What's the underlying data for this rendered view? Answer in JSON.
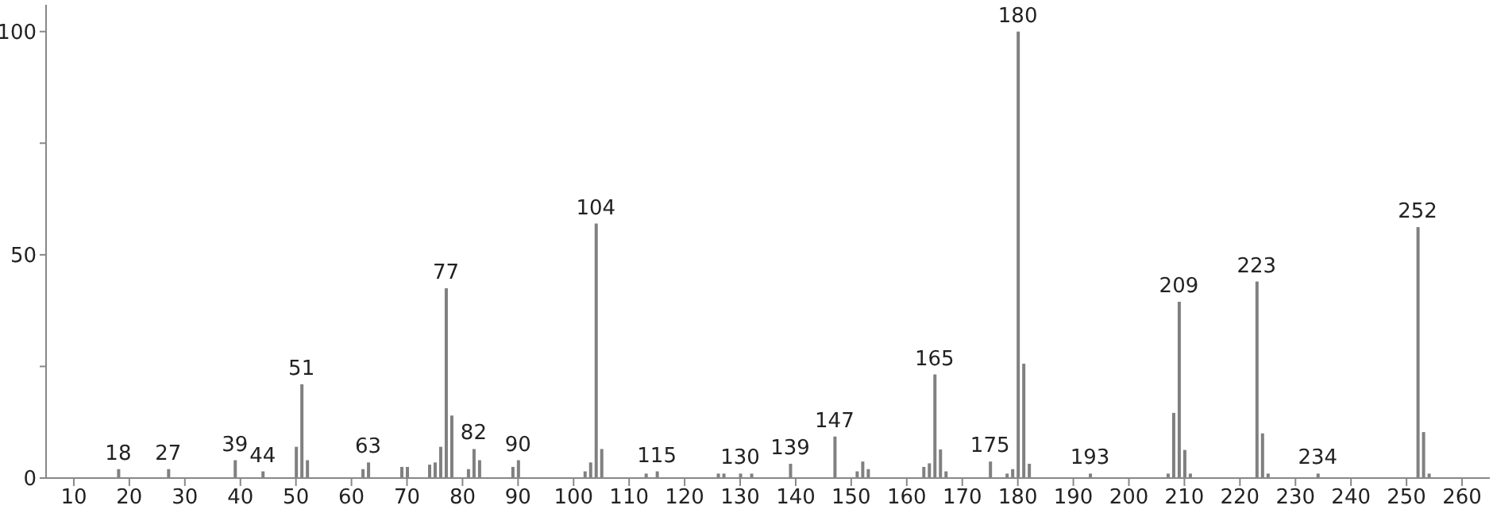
{
  "chart_data": {
    "type": "bar",
    "x": [
      18,
      27,
      39,
      44,
      50,
      51,
      52,
      62,
      63,
      69,
      70,
      74,
      75,
      76,
      77,
      78,
      81,
      82,
      83,
      89,
      90,
      102,
      103,
      104,
      105,
      113,
      115,
      126,
      127,
      130,
      132,
      139,
      147,
      151,
      152,
      153,
      163,
      164,
      165,
      166,
      167,
      175,
      178,
      179,
      180,
      181,
      182,
      193,
      207,
      208,
      209,
      210,
      211,
      223,
      224,
      225,
      234,
      252,
      253,
      254
    ],
    "values": [
      2,
      2,
      4,
      1.5,
      7,
      21,
      4,
      2,
      3.5,
      2.5,
      2.5,
      3,
      3.5,
      7,
      42.5,
      14,
      2,
      6.5,
      4,
      2.5,
      4,
      1.5,
      3.5,
      57,
      6.5,
      1,
      1.5,
      1,
      1,
      1,
      1,
      3.2,
      9.3,
      1.5,
      3.7,
      2,
      2.5,
      3.3,
      23.2,
      6.4,
      1.5,
      3.7,
      1,
      2,
      100,
      25.6,
      3.2,
      1,
      1,
      14.6,
      39.5,
      6.3,
      1,
      44,
      10,
      1,
      1,
      56.2,
      10.3,
      1
    ],
    "color": "#808080",
    "xlim": [
      5,
      265
    ],
    "xticks": [
      10,
      20,
      30,
      40,
      50,
      60,
      70,
      80,
      90,
      100,
      110,
      120,
      130,
      140,
      150,
      160,
      170,
      180,
      190,
      200,
      210,
      220,
      230,
      240,
      250,
      260
    ],
    "ylim": [
      0,
      106
    ],
    "yticks": [
      0,
      {
        "value": 25,
        "label": null
      },
      50,
      {
        "value": 75,
        "label": null
      },
      100
    ],
    "grid": false,
    "annotations": [
      {
        "text": "18",
        "x": 18,
        "y": 2
      },
      {
        "text": "27",
        "x": 27,
        "y": 2
      },
      {
        "text": "39",
        "x": 39,
        "y": 4
      },
      {
        "text": "44",
        "x": 44,
        "y": 1.5
      },
      {
        "text": "51",
        "x": 51,
        "y": 21
      },
      {
        "text": "63",
        "x": 63,
        "y": 3.5
      },
      {
        "text": "77",
        "x": 77,
        "y": 42.5
      },
      {
        "text": "82",
        "x": 82,
        "y": 6.5
      },
      {
        "text": "90",
        "x": 90,
        "y": 4
      },
      {
        "text": "104",
        "x": 104,
        "y": 57
      },
      {
        "text": "115",
        "x": 115,
        "y": 1.5
      },
      {
        "text": "130",
        "x": 130,
        "y": 1
      },
      {
        "text": "139",
        "x": 139,
        "y": 3.2
      },
      {
        "text": "147",
        "x": 147,
        "y": 9.3
      },
      {
        "text": "165",
        "x": 165,
        "y": 23.2
      },
      {
        "text": "175",
        "x": 175,
        "y": 3.7
      },
      {
        "text": "180",
        "x": 180,
        "y": 100
      },
      {
        "text": "193",
        "x": 193,
        "y": 1
      },
      {
        "text": "209",
        "x": 209,
        "y": 39.5
      },
      {
        "text": "223",
        "x": 223,
        "y": 44
      },
      {
        "text": "234",
        "x": 234,
        "y": 1
      },
      {
        "text": "252",
        "x": 252,
        "y": 56.2
      }
    ]
  }
}
